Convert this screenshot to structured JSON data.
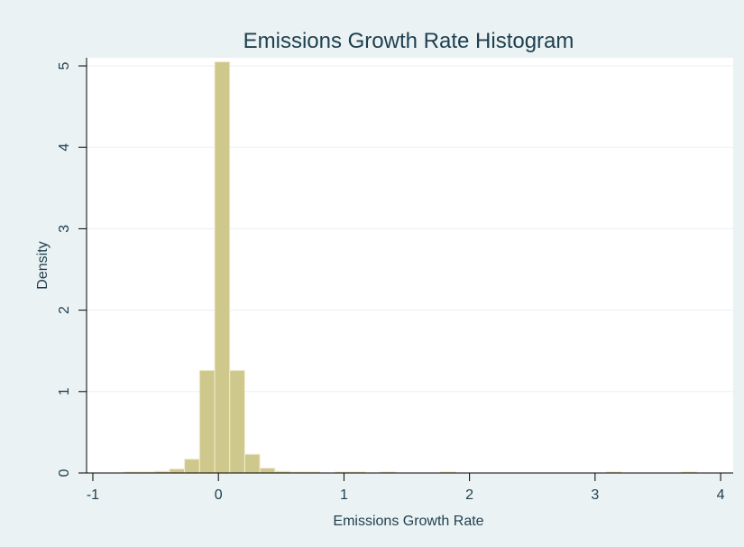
{
  "chart_data": {
    "type": "bar",
    "title": "Emissions Growth Rate Histogram",
    "xlabel": "Emissions Growth Rate",
    "ylabel": "Density",
    "xlim": [
      -1.05,
      4.1
    ],
    "ylim": [
      0,
      5.1
    ],
    "xticks": [
      -1,
      0,
      1,
      2,
      3,
      4
    ],
    "yticks": [
      0,
      1,
      2,
      3,
      4,
      5
    ],
    "grid": true,
    "legend": "none",
    "colors": {
      "background": "#eaf2f3",
      "plot": "#ffffff",
      "bar_fill": "#cfc88d",
      "bar_edge": "#f1ecd1",
      "grid": "#e8eff2",
      "text": "#1f3f4f",
      "axis": "#000000"
    },
    "bins": [
      {
        "x0": -0.75,
        "x1": -0.63,
        "density": 0.01
      },
      {
        "x0": -0.63,
        "x1": -0.51,
        "density": 0.01
      },
      {
        "x0": -0.51,
        "x1": -0.39,
        "density": 0.02
      },
      {
        "x0": -0.39,
        "x1": -0.27,
        "density": 0.05
      },
      {
        "x0": -0.27,
        "x1": -0.15,
        "density": 0.17
      },
      {
        "x0": -0.15,
        "x1": -0.03,
        "density": 1.26
      },
      {
        "x0": -0.03,
        "x1": 0.09,
        "density": 5.05
      },
      {
        "x0": 0.09,
        "x1": 0.21,
        "density": 1.26
      },
      {
        "x0": 0.21,
        "x1": 0.33,
        "density": 0.23
      },
      {
        "x0": 0.33,
        "x1": 0.45,
        "density": 0.06
      },
      {
        "x0": 0.45,
        "x1": 0.57,
        "density": 0.02
      },
      {
        "x0": 0.57,
        "x1": 0.69,
        "density": 0.01
      },
      {
        "x0": 0.69,
        "x1": 0.81,
        "density": 0.01
      },
      {
        "x0": 0.93,
        "x1": 1.05,
        "density": 0.01
      },
      {
        "x0": 1.05,
        "x1": 1.17,
        "density": 0.01
      },
      {
        "x0": 1.29,
        "x1": 1.41,
        "density": 0.01
      },
      {
        "x0": 1.77,
        "x1": 1.89,
        "density": 0.01
      },
      {
        "x0": 3.09,
        "x1": 3.21,
        "density": 0.01
      },
      {
        "x0": 3.69,
        "x1": 3.81,
        "density": 0.01
      }
    ]
  }
}
